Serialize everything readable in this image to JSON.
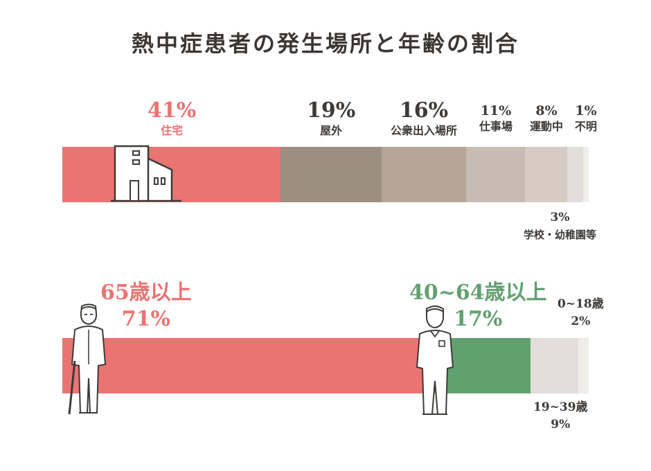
{
  "title": "熱中症患者の発生場所と年齢の割合",
  "colors": {
    "red": "#e97472",
    "green": "#62a070",
    "dark": "#3d3a37"
  },
  "chart_data": [
    {
      "type": "bar",
      "orientation": "horizontal-stacked",
      "unit": "%",
      "categories": [
        "住宅",
        "屋外",
        "公衆出入場所",
        "仕事場",
        "運動中",
        "学校・幼稚園等",
        "不明"
      ],
      "values": [
        41,
        19,
        16,
        11,
        8,
        3,
        1
      ],
      "labels": [
        "41%",
        "19%",
        "16%",
        "11%",
        "8%",
        "3%",
        "1%"
      ],
      "colors": [
        "#e97472",
        "#9c8e81",
        "#b4a598",
        "#c7bcb3",
        "#d6ccc3",
        "#e3dedb",
        "#efedea"
      ]
    },
    {
      "type": "bar",
      "orientation": "horizontal-stacked",
      "unit": "%",
      "categories": [
        "65歳以上",
        "40~64歳以上",
        "19~39歳",
        "0~18歳"
      ],
      "values": [
        71,
        17,
        9,
        2
      ],
      "labels": [
        "71%",
        "17%",
        "9%",
        "2%"
      ],
      "colors": [
        "#e97472",
        "#62a070",
        "#e3dedb",
        "#efedea"
      ]
    }
  ]
}
